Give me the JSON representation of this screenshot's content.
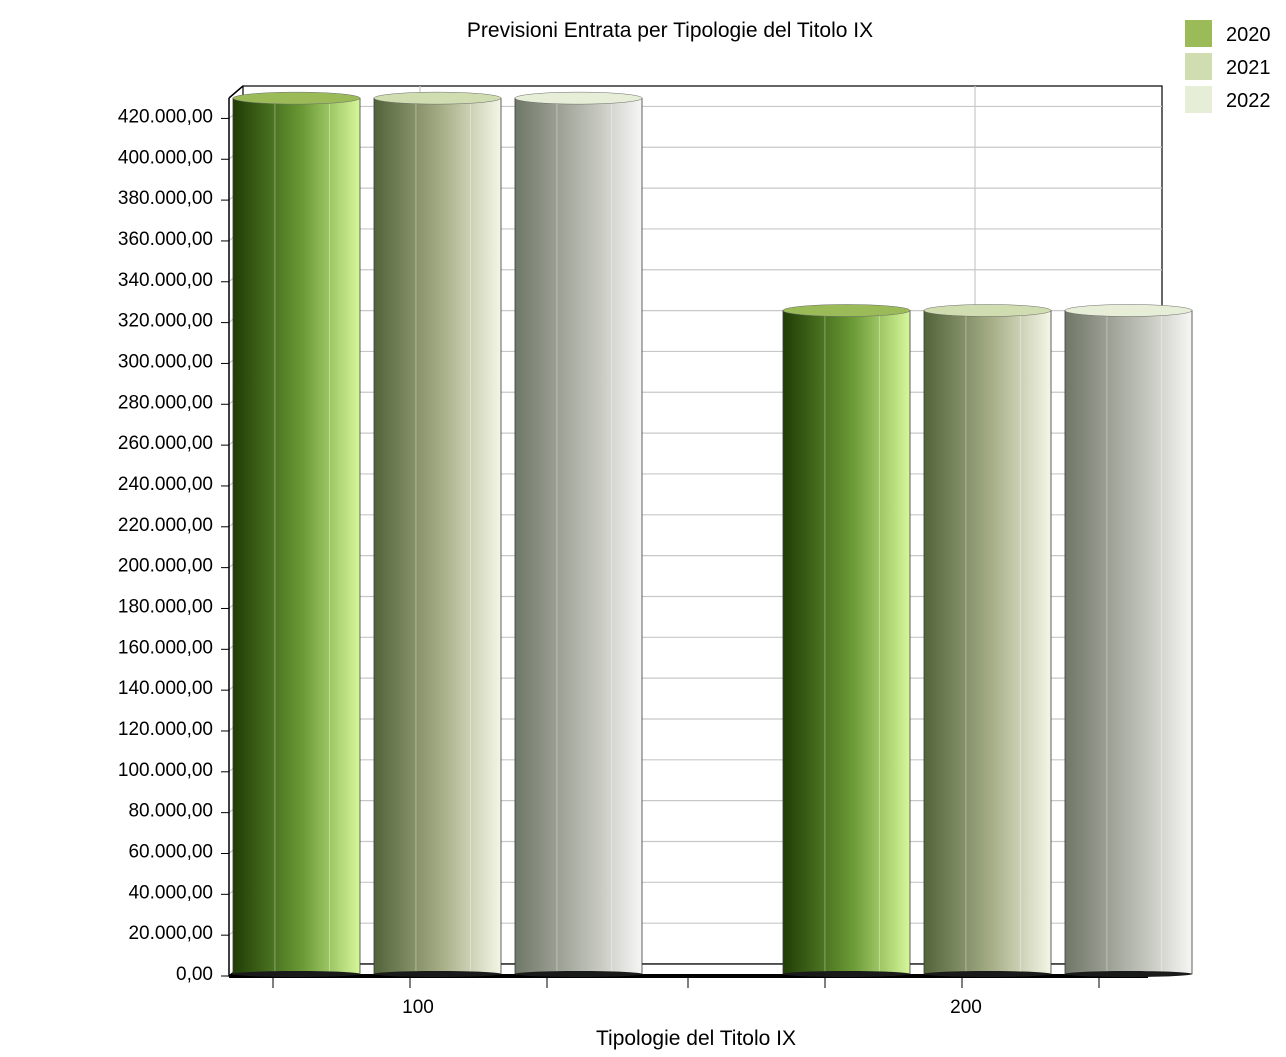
{
  "chart_data": {
    "type": "bar",
    "title": "Previsioni Entrata per Tipologie del Titolo IX",
    "xlabel": "Tipologie del Titolo IX",
    "ylabel": "",
    "categories": [
      "100",
      "200"
    ],
    "series": [
      {
        "name": "2020",
        "values": [
          427000,
          323000
        ]
      },
      {
        "name": "2021",
        "values": [
          427000,
          323000
        ]
      },
      {
        "name": "2022",
        "values": [
          427000,
          323000
        ]
      }
    ],
    "ylim": [
      0,
      430000
    ],
    "yticks": [
      "0,00",
      "20.000,00",
      "40.000,00",
      "60.000,00",
      "80.000,00",
      "100.000,00",
      "120.000,00",
      "140.000,00",
      "160.000,00",
      "180.000,00",
      "200.000,00",
      "220.000,00",
      "240.000,00",
      "260.000,00",
      "280.000,00",
      "300.000,00",
      "320.000,00",
      "340.000,00",
      "360.000,00",
      "380.000,00",
      "400.000,00",
      "420.000,00"
    ],
    "ytick_values": [
      0,
      20000,
      40000,
      60000,
      80000,
      100000,
      120000,
      140000,
      160000,
      180000,
      200000,
      220000,
      240000,
      260000,
      280000,
      300000,
      320000,
      340000,
      360000,
      380000,
      400000,
      420000
    ],
    "grid": true,
    "legend_position": "top-right",
    "colors": {
      "2020": "#9bbb59",
      "2021": "#cfddb0",
      "2022": "#e6eed8",
      "gradients": {
        "2020": [
          "#1f3d05",
          "#6b9a35",
          "#d6f79a"
        ],
        "2021": [
          "#52643a",
          "#a9b08a",
          "#f4f6e6"
        ],
        "2022": [
          "#6f7767",
          "#b7bab0",
          "#f6f6f4"
        ]
      }
    }
  }
}
